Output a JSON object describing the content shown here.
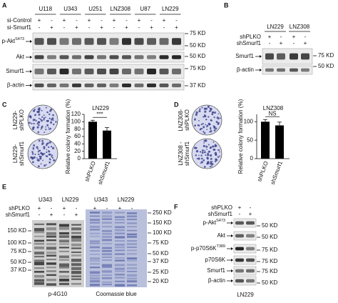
{
  "figure": {
    "panel_a": {
      "letter": "A",
      "cell_lines": [
        "U118",
        "U343",
        "U251",
        "LNZ308",
        "U87",
        "LN229"
      ],
      "conditions": [
        {
          "name": "si-Control",
          "signs": [
            "+",
            "-",
            "+",
            "-",
            "+",
            "-",
            "+",
            "-",
            "+",
            "-",
            "+",
            "-"
          ]
        },
        {
          "name": "si-Smurf1",
          "signs": [
            "-",
            "+",
            "-",
            "+",
            "-",
            "+",
            "-",
            "+",
            "-",
            "+",
            "-",
            "+"
          ]
        }
      ],
      "rows": [
        {
          "label": "p-Akt",
          "sup": "S473"
        },
        {
          "label": "Akt"
        },
        {
          "label": "Smurf1"
        },
        {
          "label": "β-actin"
        }
      ],
      "markers": [
        "75 KD",
        "50 KD",
        "50 KD",
        "75 KD",
        "37 KD"
      ]
    },
    "panel_b": {
      "letter": "B",
      "cell_lines": [
        "LN229",
        "LNZ308"
      ],
      "conditions": [
        {
          "name": "shPLKO",
          "signs": [
            "+",
            "-",
            "+",
            "-"
          ]
        },
        {
          "name": "shSmurf1",
          "signs": [
            "-",
            "+",
            "-",
            "+"
          ]
        }
      ],
      "rows": [
        {
          "label": "Smurf1"
        },
        {
          "label": "β-actin"
        }
      ],
      "markers": [
        "75 KD",
        "50 KD"
      ]
    },
    "panel_c": {
      "letter": "C",
      "plate_labels": [
        [
          "LN229-",
          "shPLKO"
        ],
        [
          "LN229-",
          "shSmurf1"
        ]
      ]
    },
    "panel_d": {
      "letter": "D",
      "plate_labels": [
        [
          "LNZ308-",
          "shPLKO"
        ],
        [
          "LNZ308 -",
          "shSmurf1"
        ]
      ]
    },
    "panel_e": {
      "letter": "E",
      "cell_lines": [
        "U343",
        "LN229",
        "U343",
        "LN229"
      ],
      "conditions": [
        {
          "name": "shPLKO",
          "signs": [
            "+",
            "-",
            "+",
            "-",
            "+",
            "-",
            "+",
            "-"
          ]
        },
        {
          "name": "shSmurf1",
          "signs": [
            "-",
            "+",
            "-",
            "+",
            "-",
            "+",
            "-",
            "+"
          ]
        }
      ],
      "markers_left": [
        "150 KD",
        "100 KD",
        "75 KD",
        "50 KD",
        "37 KD"
      ],
      "markers_right": [
        "250 KD",
        "150 KD",
        "100 KD",
        "75 KD",
        "50 KD",
        "37 KD",
        "25 KD",
        "20 KD"
      ],
      "blot_labels": [
        "p-4G10",
        "Coomassie blue"
      ]
    },
    "panel_f": {
      "letter": "F",
      "conditions": [
        {
          "name": "shPLKO",
          "signs": [
            "+",
            "-"
          ]
        },
        {
          "name": "shSmurf1",
          "signs": [
            "-",
            "+"
          ]
        }
      ],
      "rows": [
        {
          "label": "p-Akt",
          "sup": "S473"
        },
        {
          "label": "Akt"
        },
        {
          "label": "p-p70S6K",
          "sup": "T389"
        },
        {
          "label": "p70S6K"
        },
        {
          "label": "Smurf1"
        },
        {
          "label": "β-actin"
        }
      ],
      "markers": [
        "50 KD",
        "50 KD",
        "75 KD",
        "75 KD",
        "75 KD",
        "50 KD"
      ],
      "cell_line": "LN229"
    }
  },
  "chart_data": [
    {
      "type": "bar",
      "title": "LN229",
      "y_label": "Relative colony formation (%)",
      "categories": [
        "shPLKO",
        "shSmurf1"
      ],
      "values": [
        100,
        76
      ],
      "errors": [
        4,
        8
      ],
      "color": "#000000",
      "annotation": "***",
      "ylim": [
        0,
        120
      ],
      "yticks": [
        0,
        20,
        40,
        60,
        80,
        100,
        120
      ]
    },
    {
      "type": "bar",
      "title": "LNZ308",
      "y_label": "Relative colony formation (%)",
      "categories": [
        "shPLKO",
        "shSmurf1"
      ],
      "values": [
        100,
        90
      ],
      "errors": [
        6,
        9
      ],
      "color": "#000000",
      "annotation": "NS",
      "ylim": [
        0,
        120
      ],
      "yticks": [
        0,
        50,
        100
      ]
    }
  ]
}
